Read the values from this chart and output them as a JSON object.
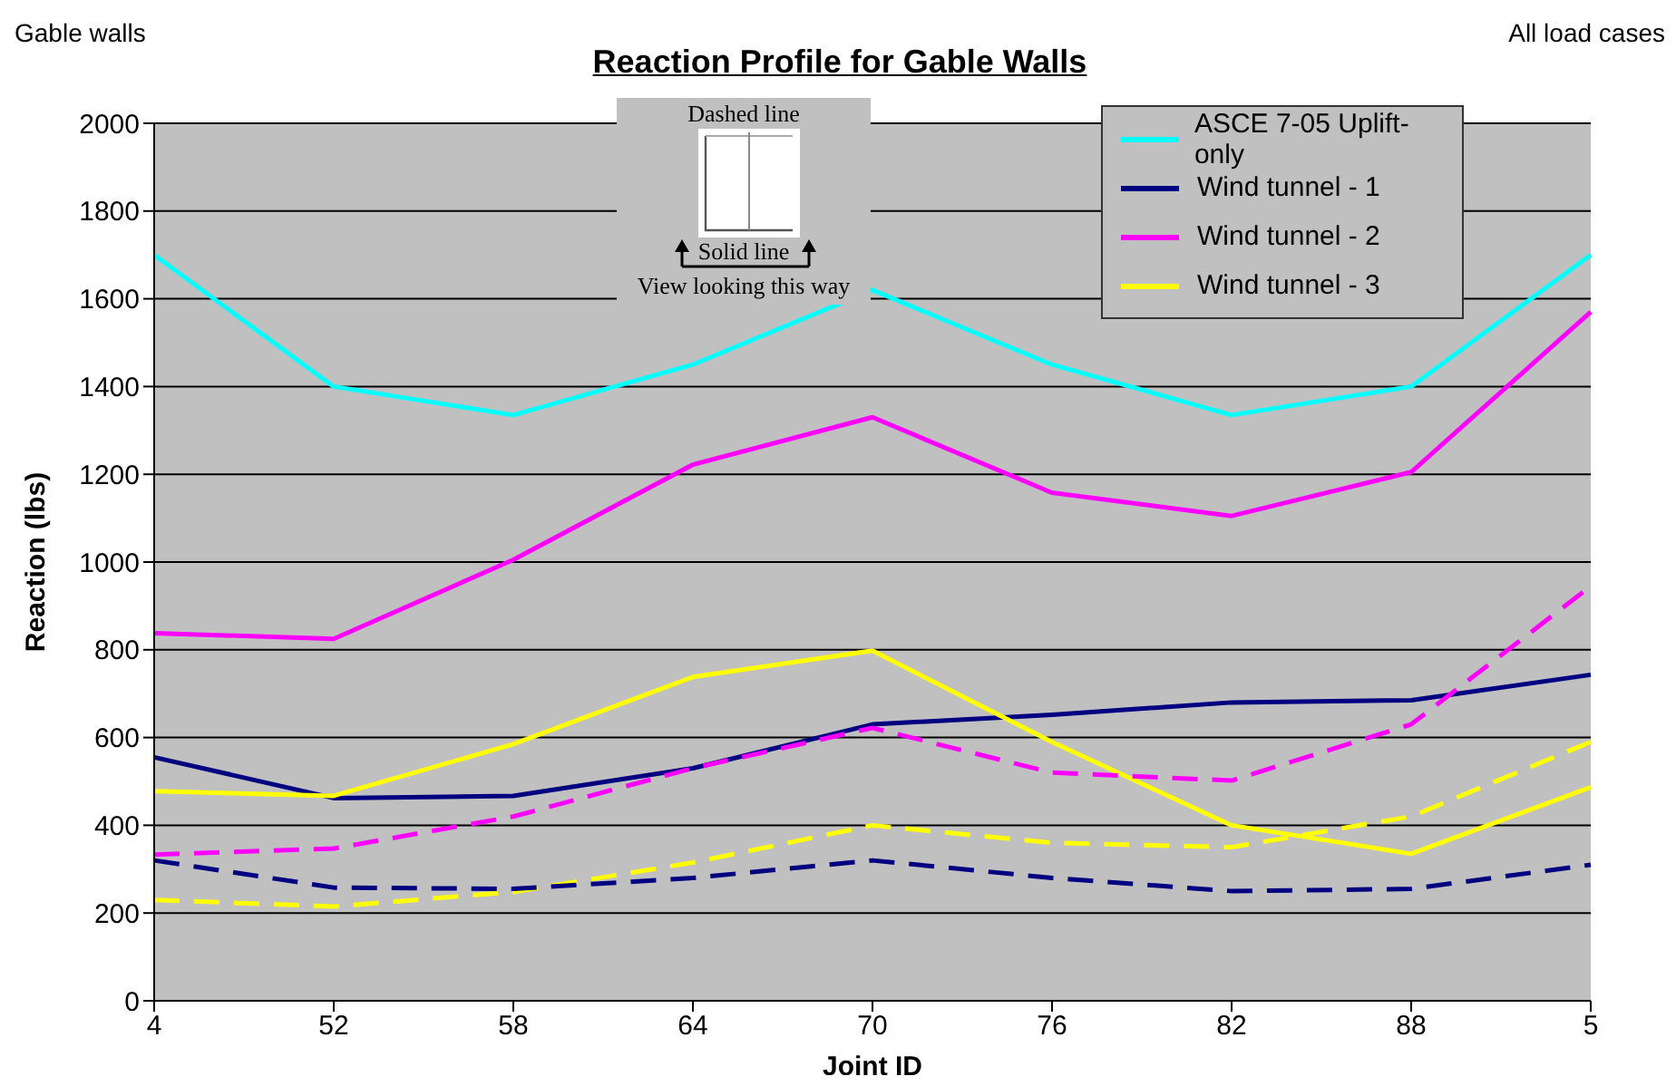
{
  "chart_data": {
    "type": "line",
    "title": "Reaction Profile for Gable Walls",
    "xlabel": "Joint ID",
    "ylabel": "Reaction (lbs)",
    "annotations": [
      "Gable walls",
      "All load cases",
      "Dashed line",
      "Solid line",
      "View looking this way"
    ],
    "categories": [
      "4",
      "52",
      "58",
      "64",
      "70",
      "76",
      "82",
      "88",
      "5"
    ],
    "series": [
      {
        "name": "ASCE 7-05 Uplift-only",
        "color": "#00ffff",
        "values": [
          1700,
          1400,
          1335,
          1450,
          1620,
          1450,
          1335,
          1400,
          1700
        ]
      },
      {
        "name": "Wind tunnel - 1",
        "color": "#000080",
        "values": [
          555,
          462,
          467,
          530,
          630,
          652,
          680,
          685,
          743
        ]
      },
      {
        "name": "Wind tunnel - 2",
        "color": "#ff00ff",
        "values": [
          838,
          825,
          1005,
          1222,
          1330,
          1158,
          1105,
          1205,
          1570
        ]
      },
      {
        "name": "Wind tunnel - 3",
        "color": "#ffff00",
        "values": [
          478,
          467,
          585,
          738,
          798,
          590,
          400,
          335,
          487
        ]
      },
      {
        "color": "#ff00ff",
        "line_style": "dashed",
        "values": [
          333,
          347,
          420,
          530,
          622,
          520,
          502,
          630,
          945
        ]
      },
      {
        "color": "#ffff00",
        "line_style": "dashed",
        "values": [
          230,
          215,
          248,
          315,
          400,
          360,
          350,
          420,
          590
        ]
      },
      {
        "color": "#000080",
        "line_style": "dashed",
        "values": [
          320,
          258,
          255,
          280,
          320,
          280,
          250,
          255,
          310
        ]
      }
    ],
    "ylim": [
      0,
      2000
    ],
    "yticks": [
      0,
      200,
      400,
      600,
      800,
      1000,
      1200,
      1400,
      1600,
      1800,
      2000
    ],
    "grid": "y",
    "legend": "top right",
    "marker": "none",
    "line_style": "solid"
  }
}
